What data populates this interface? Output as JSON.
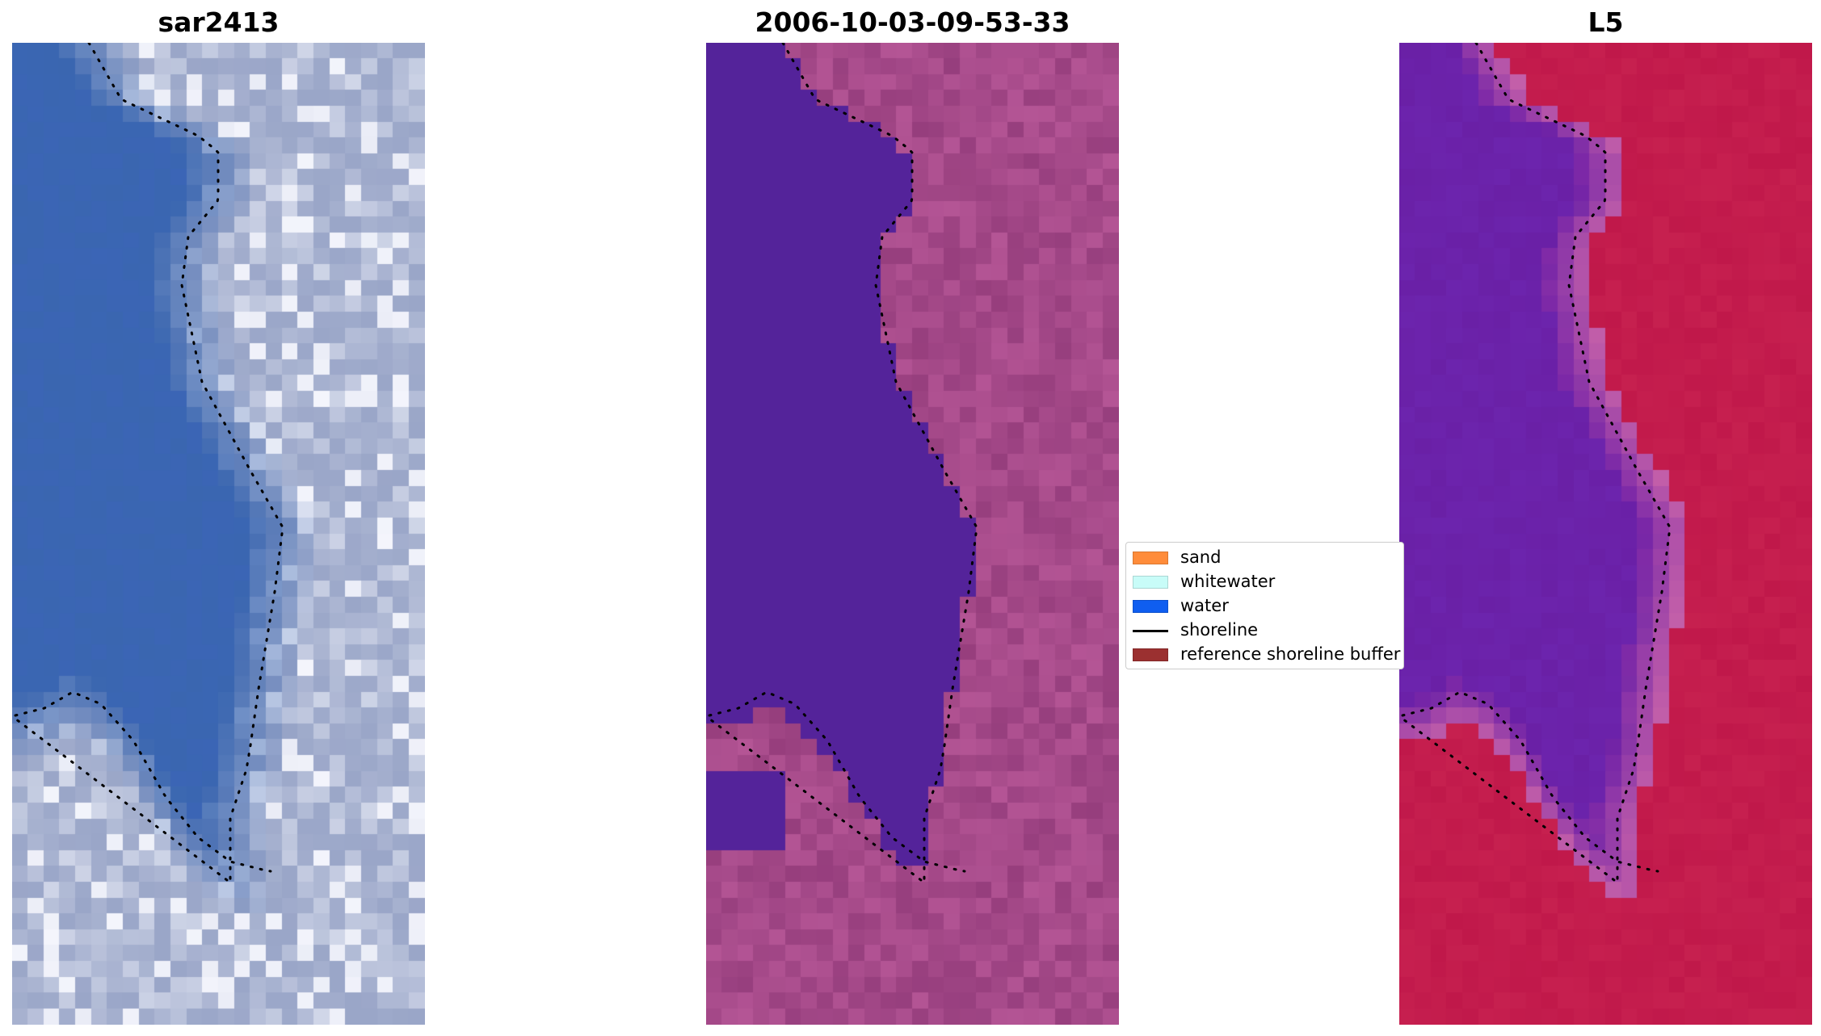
{
  "panels": [
    {
      "id": "rgb",
      "title": "sar2413",
      "render": "rgb"
    },
    {
      "id": "classified",
      "title": "2006-10-03-09-53-33",
      "render": "classified"
    },
    {
      "id": "index",
      "title": "L5",
      "render": "index"
    }
  ],
  "legend": {
    "items": [
      {
        "label": "sand",
        "kind": "patch",
        "color": "#ff8c3a"
      },
      {
        "label": "whitewater",
        "kind": "patch",
        "color": "#c8fcf8"
      },
      {
        "label": "water",
        "kind": "patch",
        "color": "#0f5ef0"
      },
      {
        "label": "shoreline",
        "kind": "line",
        "color": "#000000"
      },
      {
        "label": "reference shoreline buffer",
        "kind": "patch",
        "color": "#9b3030"
      }
    ]
  },
  "colors": {
    "classified_water": "#54239a",
    "rgb_water": "#3a66b0",
    "rgb_land": "#9aa6c8",
    "index_water": "#6a20a6",
    "index_land": "#c0184a"
  }
}
